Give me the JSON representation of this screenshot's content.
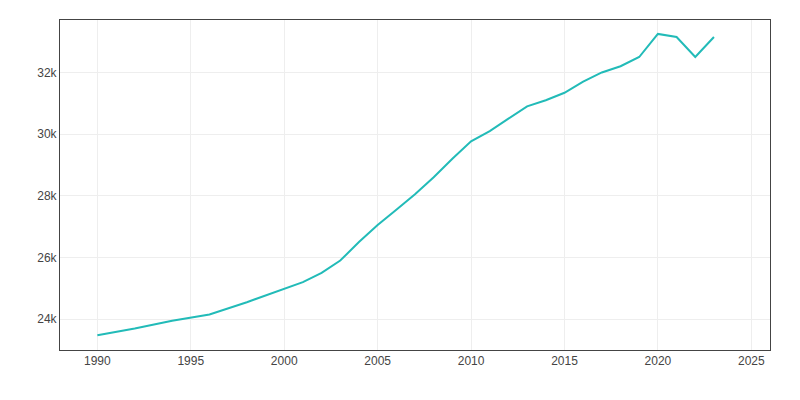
{
  "chart_data": {
    "type": "line",
    "x": [
      1990,
      1992,
      1994,
      1996,
      1998,
      2000,
      2001,
      2002,
      2003,
      2004,
      2005,
      2006,
      2007,
      2008,
      2009,
      2010,
      2011,
      2012,
      2013,
      2014,
      2015,
      2016,
      2017,
      2018,
      2019,
      2020,
      2021,
      2022,
      2023
    ],
    "values": [
      23478,
      23700,
      23950,
      24150,
      24550,
      24990,
      25200,
      25500,
      25900,
      26500,
      27050,
      27550,
      28050,
      28600,
      29200,
      29764,
      30100,
      30500,
      30900,
      31100,
      31340,
      31700,
      32000,
      32200,
      32500,
      33248,
      33150,
      32500,
      33150
    ],
    "color": "#22bbb8",
    "xlim": [
      1988,
      2026
    ],
    "xticks": [
      1990,
      1995,
      2000,
      2005,
      2010,
      2015,
      2020,
      2025
    ],
    "ylim": [
      23000,
      33700
    ],
    "yticks": [
      {
        "value": 24000,
        "label": "24k"
      },
      {
        "value": 26000,
        "label": "26k"
      },
      {
        "value": 28000,
        "label": "28k"
      },
      {
        "value": 30000,
        "label": "30k"
      },
      {
        "value": 32000,
        "label": "32k"
      }
    ],
    "grid": true
  }
}
